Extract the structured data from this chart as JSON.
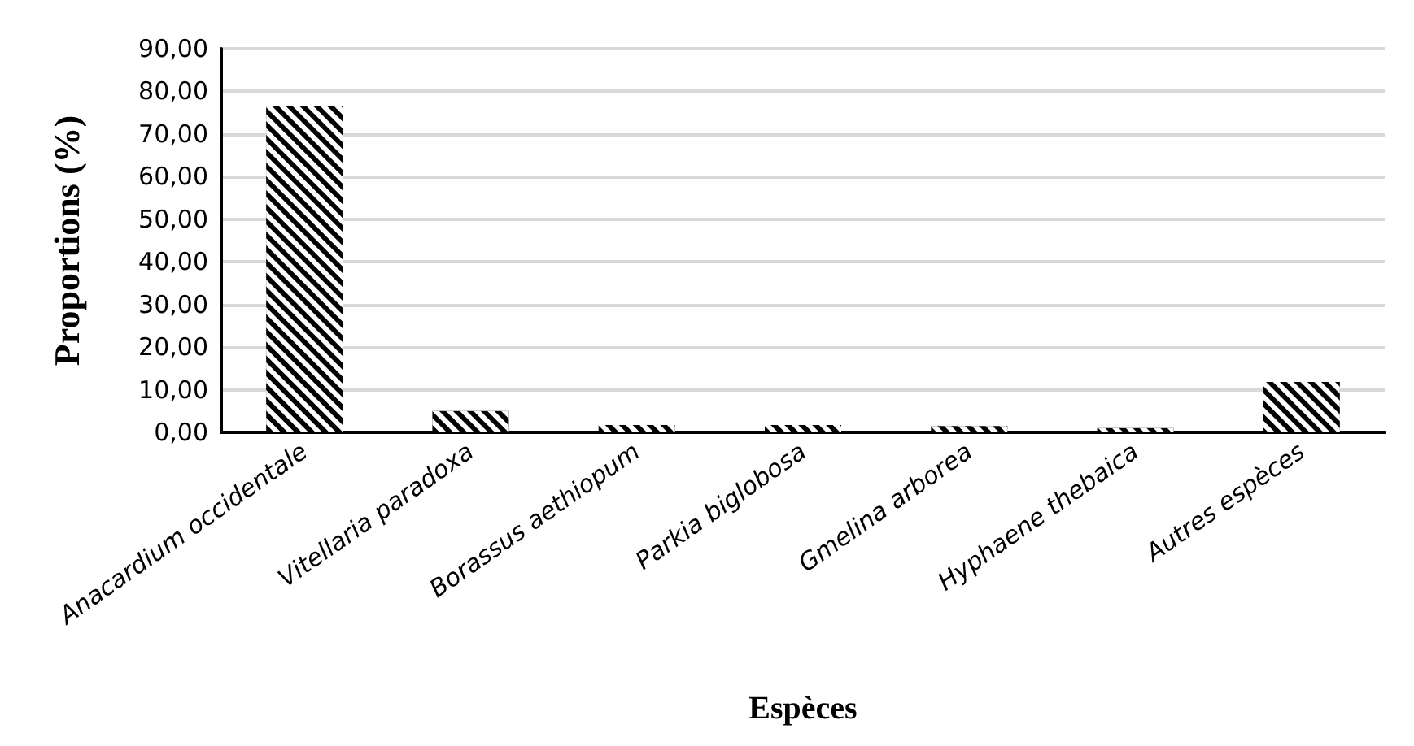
{
  "chart_data": {
    "type": "bar",
    "xlabel": "Espèces",
    "ylabel": "Proportions (%)",
    "categories": [
      "Anacardium occidentale",
      "Vitellaria paradoxa",
      "Borassus aethiopum",
      "Parkia biglobosa",
      "Gmelina arborea",
      "Hyphaene thebaica",
      "Autres espèces"
    ],
    "values": [
      76.5,
      5.0,
      1.7,
      1.7,
      1.5,
      1.0,
      11.8
    ],
    "color": "#000000",
    "ylim": [
      0,
      90
    ],
    "yticks": [
      {
        "value": 0,
        "label": "0,00"
      },
      {
        "value": 10,
        "label": "10,00"
      },
      {
        "value": 20,
        "label": "20,00"
      },
      {
        "value": 30,
        "label": "30,00"
      },
      {
        "value": 40,
        "label": "40,00"
      },
      {
        "value": 50,
        "label": "50,00"
      },
      {
        "value": 60,
        "label": "60,00"
      },
      {
        "value": 70,
        "label": "70,00"
      },
      {
        "value": 80,
        "label": "80,00"
      },
      {
        "value": 90,
        "label": "90,00"
      }
    ],
    "grid": "y"
  }
}
